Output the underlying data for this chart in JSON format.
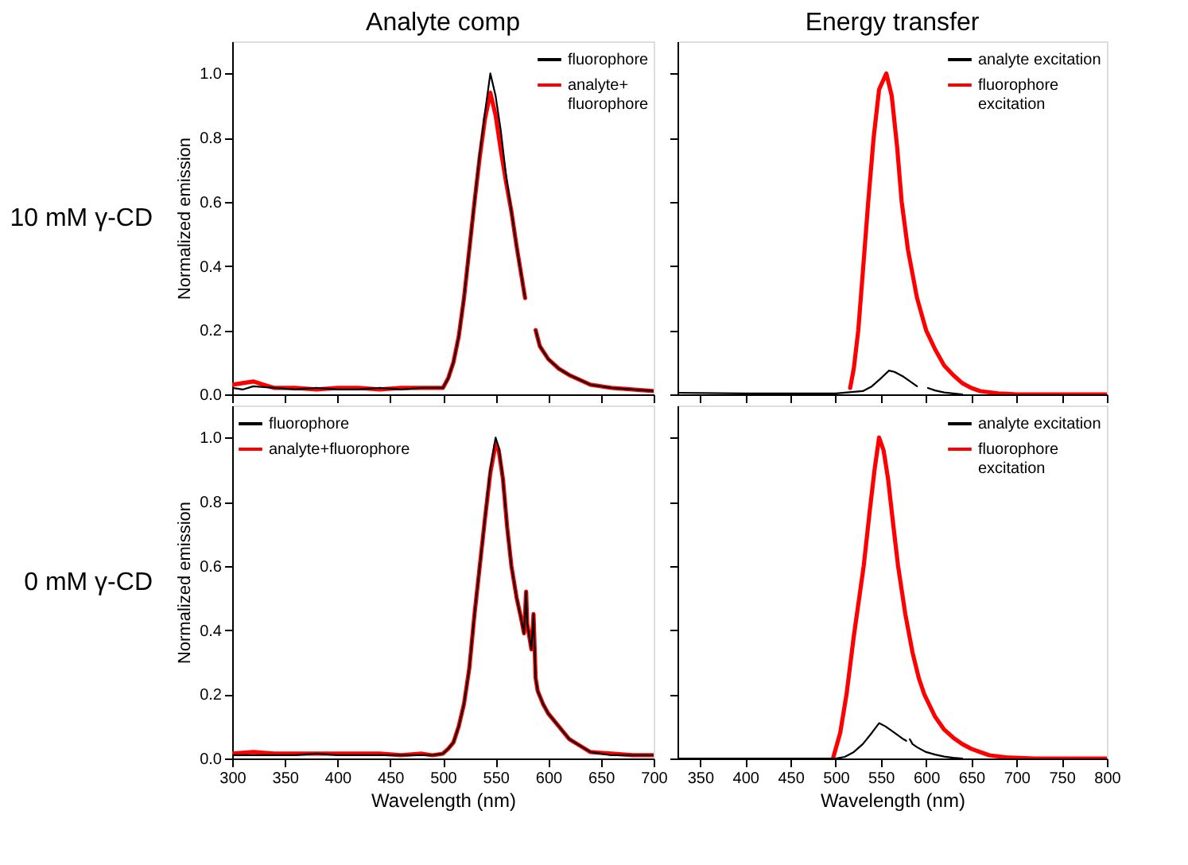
{
  "chart_data": [
    {
      "type": "line",
      "title": "Analyte comp",
      "ylabel": "Normalized emission",
      "annotations": [
        "10 mM γ-CD"
      ],
      "xlim": [
        300,
        700
      ],
      "xticks": [
        300,
        350,
        400,
        450,
        500,
        550,
        600,
        650,
        700
      ],
      "ylim": [
        0,
        1.1
      ],
      "yticks": [
        {
          "value": 0,
          "label": "0.0"
        },
        {
          "value": 0.2,
          "label": "0.2"
        },
        {
          "value": 0.4,
          "label": "0.4"
        },
        {
          "value": 0.6,
          "label": "0.6"
        },
        {
          "value": 0.8,
          "label": "0.8"
        },
        {
          "value": 1.0,
          "label": "1.0"
        }
      ],
      "tick_labels": "y",
      "legend": "top right",
      "grid": false,
      "line_style": "solid",
      "marker": "none",
      "series": [
        {
          "name": "fluorophore",
          "color": "#000000",
          "x": [
            300,
            310,
            320,
            340,
            360,
            380,
            400,
            420,
            440,
            460,
            480,
            500,
            505,
            510,
            515,
            520,
            525,
            530,
            535,
            540,
            545,
            550,
            555,
            560,
            565,
            570,
            575,
            578,
            583,
            588,
            592,
            600,
            610,
            620,
            630,
            640,
            660,
            680,
            700
          ],
          "values": [
            0.02,
            0.015,
            0.025,
            0.02,
            0.015,
            0.02,
            0.015,
            0.015,
            0.02,
            0.015,
            0.02,
            0.02,
            0.05,
            0.1,
            0.18,
            0.3,
            0.45,
            0.6,
            0.75,
            0.88,
            1.0,
            0.93,
            0.82,
            0.68,
            0.57,
            0.46,
            0.36,
            0.3,
            null,
            0.2,
            0.15,
            0.11,
            0.08,
            0.06,
            0.045,
            0.03,
            0.02,
            0.015,
            0.01
          ]
        },
        {
          "name": "analyte+\nfluorophore",
          "color": "#ff0000",
          "x": [
            300,
            310,
            320,
            330,
            340,
            360,
            380,
            400,
            420,
            440,
            460,
            480,
            500,
            505,
            510,
            515,
            520,
            525,
            530,
            535,
            540,
            545,
            550,
            555,
            560,
            565,
            570,
            575,
            578,
            583,
            588,
            592,
            600,
            610,
            620,
            630,
            640,
            660,
            680,
            700
          ],
          "values": [
            0.03,
            0.035,
            0.04,
            0.03,
            0.02,
            0.02,
            0.015,
            0.02,
            0.02,
            0.015,
            0.02,
            0.02,
            0.02,
            0.05,
            0.1,
            0.18,
            0.3,
            0.45,
            0.6,
            0.74,
            0.86,
            0.94,
            0.87,
            0.76,
            0.66,
            0.57,
            0.46,
            0.36,
            0.3,
            null,
            0.2,
            0.15,
            0.11,
            0.08,
            0.06,
            0.045,
            0.03,
            0.02,
            0.015,
            0.01
          ]
        }
      ]
    },
    {
      "type": "line",
      "title": "Energy transfer",
      "xlim": [
        325,
        800
      ],
      "xticks": [
        350,
        400,
        450,
        500,
        550,
        600,
        650,
        700,
        750,
        800
      ],
      "ylim": [
        0,
        1.1
      ],
      "yticks": [
        0,
        0.2,
        0.4,
        0.6,
        0.8,
        1.0
      ],
      "tick_labels": false,
      "legend": "top right",
      "grid": false,
      "line_style": "solid",
      "marker": "none",
      "series": [
        {
          "name": "analyte excitation",
          "color": "#000000",
          "x": [
            325,
            400,
            450,
            500,
            530,
            540,
            550,
            559,
            565,
            575,
            585,
            590,
            596,
            602,
            610,
            620,
            630,
            640
          ],
          "values": [
            0.005,
            0.003,
            0.003,
            0.003,
            0.01,
            0.025,
            0.05,
            0.074,
            0.07,
            0.055,
            0.035,
            0.025,
            null,
            0.02,
            0.012,
            0.006,
            0.003,
            0
          ]
        },
        {
          "name": "fluorophore\nexcitation",
          "color": "#ff0000",
          "x": [
            516,
            520,
            525,
            530,
            536,
            542,
            548,
            556,
            562,
            568,
            573,
            580,
            590,
            600,
            610,
            620,
            630,
            640,
            650,
            660,
            680,
            700,
            750,
            800
          ],
          "values": [
            0.02,
            0.08,
            0.2,
            0.38,
            0.6,
            0.8,
            0.95,
            1.0,
            0.93,
            0.77,
            0.6,
            0.45,
            0.3,
            0.2,
            0.14,
            0.09,
            0.06,
            0.035,
            0.02,
            0.01,
            0.003,
            0,
            0,
            0
          ]
        }
      ]
    },
    {
      "type": "line",
      "xlabel": "Wavelength (nm)",
      "ylabel": "Normalized emission",
      "annotations": [
        "0 mM γ-CD"
      ],
      "xlim": [
        300,
        700
      ],
      "xticks": [
        300,
        350,
        400,
        450,
        500,
        550,
        600,
        650,
        700
      ],
      "ylim": [
        0,
        1.1
      ],
      "yticks": [
        {
          "value": 0,
          "label": "0.0"
        },
        {
          "value": 0.2,
          "label": "0.2"
        },
        {
          "value": 0.4,
          "label": "0.4"
        },
        {
          "value": 0.6,
          "label": "0.6"
        },
        {
          "value": 0.8,
          "label": "0.8"
        },
        {
          "value": 1.0,
          "label": "1.0"
        }
      ],
      "legend": "top left",
      "grid": false,
      "line_style": "solid",
      "marker": "none",
      "series": [
        {
          "name": "fluorophore",
          "color": "#000000",
          "x": [
            300,
            320,
            340,
            360,
            380,
            400,
            420,
            440,
            460,
            480,
            490,
            500,
            505,
            510,
            515,
            520,
            525,
            530,
            535,
            540,
            545,
            550,
            553,
            557,
            561,
            565,
            570,
            574,
            577,
            579,
            580,
            584,
            586,
            588,
            590,
            595,
            600,
            610,
            620,
            630,
            640,
            660,
            680,
            700
          ],
          "values": [
            0.01,
            0.01,
            0.01,
            0.01,
            0.015,
            0.01,
            0.01,
            0.01,
            0.01,
            0.01,
            0.01,
            0.015,
            0.03,
            0.05,
            0.1,
            0.17,
            0.28,
            0.45,
            0.6,
            0.75,
            0.9,
            1.0,
            0.97,
            0.87,
            0.72,
            0.6,
            0.5,
            0.44,
            0.39,
            0.52,
            0.42,
            0.34,
            0.45,
            0.25,
            0.21,
            0.17,
            0.14,
            0.1,
            0.06,
            0.04,
            0.02,
            0.01,
            0.01,
            0.01
          ]
        },
        {
          "name": "analyte+fluorophore",
          "color": "#ff0000",
          "x": [
            300,
            320,
            340,
            360,
            380,
            400,
            420,
            440,
            460,
            480,
            490,
            500,
            505,
            510,
            515,
            520,
            525,
            530,
            535,
            540,
            545,
            550,
            553,
            557,
            561,
            565,
            570,
            574,
            577,
            579,
            580,
            584,
            586,
            588,
            590,
            595,
            600,
            610,
            620,
            630,
            640,
            660,
            680,
            700
          ],
          "values": [
            0.015,
            0.02,
            0.015,
            0.015,
            0.015,
            0.015,
            0.015,
            0.015,
            0.01,
            0.015,
            0.01,
            0.015,
            0.03,
            0.05,
            0.1,
            0.17,
            0.28,
            0.45,
            0.6,
            0.75,
            0.89,
            0.98,
            0.96,
            0.87,
            0.72,
            0.6,
            0.5,
            0.44,
            0.39,
            0.52,
            0.42,
            0.34,
            0.45,
            0.25,
            0.21,
            0.17,
            0.14,
            0.1,
            0.06,
            0.04,
            0.02,
            0.015,
            0.01,
            0.01
          ]
        }
      ]
    },
    {
      "type": "line",
      "xlabel": "Wavelength (nm)",
      "xlim": [
        325,
        800
      ],
      "xticks": [
        350,
        400,
        450,
        500,
        550,
        600,
        650,
        700,
        750,
        800
      ],
      "ylim": [
        0,
        1.1
      ],
      "yticks": [
        0,
        0.2,
        0.4,
        0.6,
        0.8,
        1.0
      ],
      "tick_labels": "x",
      "legend": "top right",
      "grid": false,
      "line_style": "solid",
      "marker": "none",
      "series": [
        {
          "name": "analyte excitation",
          "color": "#000000",
          "x": [
            325,
            400,
            500,
            510,
            520,
            530,
            540,
            548,
            555,
            565,
            575,
            578,
            580,
            582,
            585,
            590,
            600,
            610,
            620,
            630,
            640
          ],
          "values": [
            0,
            0,
            0,
            0.005,
            0.02,
            0.045,
            0.08,
            0.11,
            0.1,
            0.08,
            0.06,
            0.055,
            null,
            0.06,
            0.045,
            0.035,
            0.02,
            0.012,
            0.006,
            0.002,
            0
          ]
        },
        {
          "name": "fluorophore\nexcitation",
          "color": "#ff0000",
          "x": [
            497,
            505,
            512,
            520,
            526,
            531,
            538,
            543,
            548,
            553,
            558,
            564,
            569,
            577,
            585,
            592,
            598,
            610,
            620,
            630,
            640,
            650,
            660,
            670,
            690,
            720,
            800
          ],
          "values": [
            0,
            0.08,
            0.2,
            0.38,
            0.5,
            0.6,
            0.78,
            0.9,
            1.0,
            0.96,
            0.87,
            0.72,
            0.6,
            0.45,
            0.33,
            0.25,
            0.2,
            0.13,
            0.09,
            0.065,
            0.045,
            0.03,
            0.02,
            0.01,
            0.003,
            0,
            0
          ]
        }
      ]
    }
  ]
}
